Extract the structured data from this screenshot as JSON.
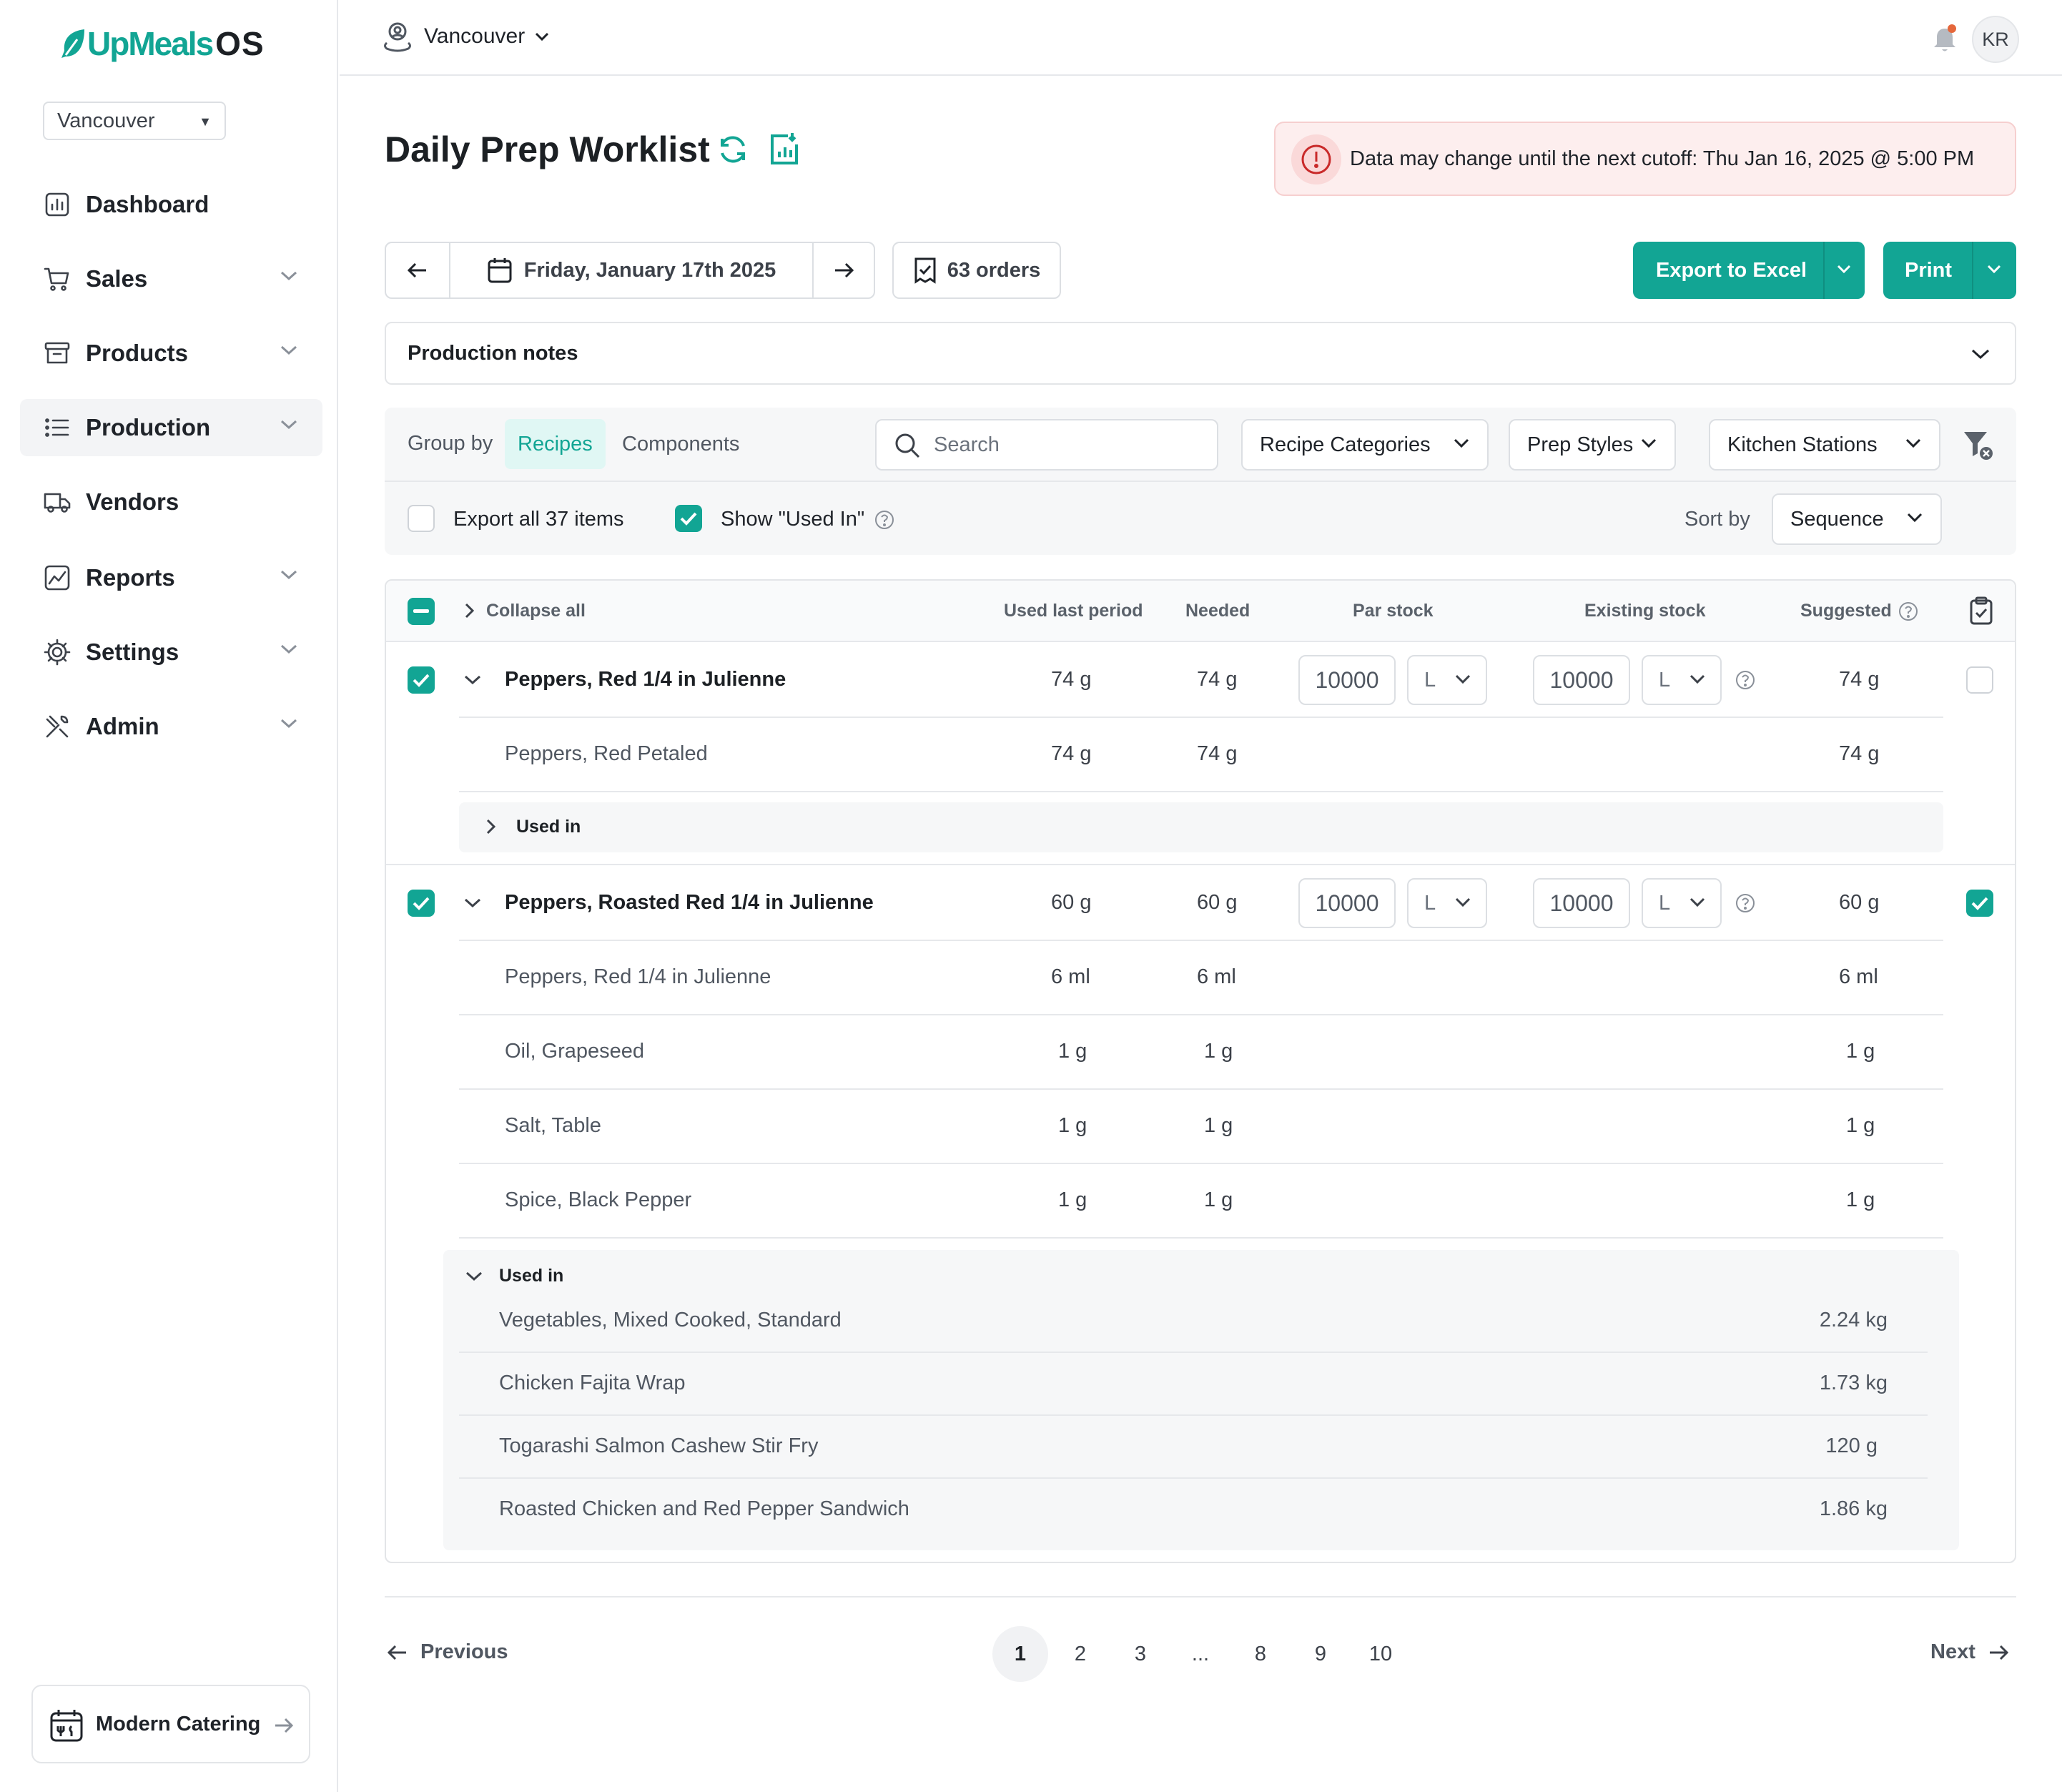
{
  "app": {
    "logo_main": "UpMeals",
    "logo_suffix": "OS",
    "brand_color": "#12a594"
  },
  "sidebar": {
    "location": "Vancouver",
    "items": [
      {
        "label": "Dashboard",
        "icon": "dashboard-icon",
        "has_chevron": false,
        "active": false
      },
      {
        "label": "Sales",
        "icon": "cart-icon",
        "has_chevron": true,
        "active": false
      },
      {
        "label": "Products",
        "icon": "archive-box-icon",
        "has_chevron": true,
        "active": false
      },
      {
        "label": "Production",
        "icon": "list-icon",
        "has_chevron": true,
        "active": true
      },
      {
        "label": "Vendors",
        "icon": "truck-icon",
        "has_chevron": false,
        "active": false
      },
      {
        "label": "Reports",
        "icon": "chart-line-icon",
        "has_chevron": true,
        "active": false
      },
      {
        "label": "Settings",
        "icon": "gear-icon",
        "has_chevron": true,
        "active": false
      },
      {
        "label": "Admin",
        "icon": "tools-icon",
        "has_chevron": true,
        "active": false
      }
    ],
    "footer": {
      "label": "Modern Catering",
      "icon": "calendar-utensils-icon"
    }
  },
  "topbar": {
    "location": "Vancouver",
    "user_initials": "KR",
    "notification_dot_color": "#e5673b"
  },
  "page": {
    "title": "Daily Prep Worklist",
    "alert": "Data may change until the next cutoff: Thu Jan 16, 2025 @ 5:00 PM",
    "date": "Friday, January 17th 2025",
    "orders": "63 orders",
    "export_label": "Export to Excel",
    "print_label": "Print",
    "production_notes": "Production notes"
  },
  "filters": {
    "group_by_label": "Group by",
    "group_options": [
      "Recipes",
      "Components"
    ],
    "group_selected": "Recipes",
    "search_placeholder": "Search",
    "recipe_categories": "Recipe Categories",
    "prep_styles": "Prep Styles",
    "kitchen_stations": "Kitchen Stations",
    "export_all_label": "Export all 37 items",
    "export_all_checked": false,
    "show_used_in_label": "Show \"Used In\"",
    "show_used_in_checked": true,
    "sort_by_label": "Sort by",
    "sort_value": "Sequence"
  },
  "table": {
    "headers": {
      "collapse_all": "Collapse all",
      "used_last_period": "Used last period",
      "needed": "Needed",
      "par_stock": "Par stock",
      "existing_stock": "Existing stock",
      "suggested": "Suggested"
    },
    "rows": [
      {
        "name": "Peppers, Red 1/4 in Julienne",
        "used": "74 g",
        "needed": "74 g",
        "par": "10000",
        "par_unit": "L",
        "existing": "10000",
        "existing_unit": "L",
        "suggested": "74 g",
        "selected": true,
        "done": false,
        "components": [
          {
            "name": "Peppers, Red Petaled",
            "used": "74 g",
            "needed": "74 g",
            "suggested": "74 g"
          }
        ],
        "used_in_label": "Used in",
        "used_in_expanded": false,
        "used_in": []
      },
      {
        "name": "Peppers, Roasted Red 1/4 in Julienne",
        "used": "60 g",
        "needed": "60 g",
        "par": "10000",
        "par_unit": "L",
        "existing": "10000",
        "existing_unit": "L",
        "suggested": "60 g",
        "selected": true,
        "done": true,
        "components": [
          {
            "name": "Peppers, Red 1/4 in Julienne",
            "used": "6 ml",
            "needed": "6 ml",
            "suggested": "6 ml"
          },
          {
            "name": "Oil, Grapeseed",
            "used": "1 g",
            "needed": "1 g",
            "suggested": "1 g"
          },
          {
            "name": "Salt, Table",
            "used": "1 g",
            "needed": "1 g",
            "suggested": "1 g"
          },
          {
            "name": "Spice, Black Pepper",
            "used": "1 g",
            "needed": "1 g",
            "suggested": "1 g"
          }
        ],
        "used_in_label": "Used in",
        "used_in_expanded": true,
        "used_in": [
          {
            "name": "Vegetables, Mixed Cooked, Standard",
            "qty": "2.24 kg"
          },
          {
            "name": "Chicken Fajita Wrap",
            "qty": "1.73 kg"
          },
          {
            "name": "Togarashi Salmon Cashew Stir Fry",
            "qty": "120 g"
          },
          {
            "name": "Roasted Chicken and Red Pepper Sandwich",
            "qty": "1.86 kg"
          }
        ]
      }
    ]
  },
  "pagination": {
    "prev_label": "Previous",
    "next_label": "Next",
    "pages": [
      "1",
      "2",
      "3",
      "...",
      "8",
      "9",
      "10"
    ],
    "current": "1"
  }
}
